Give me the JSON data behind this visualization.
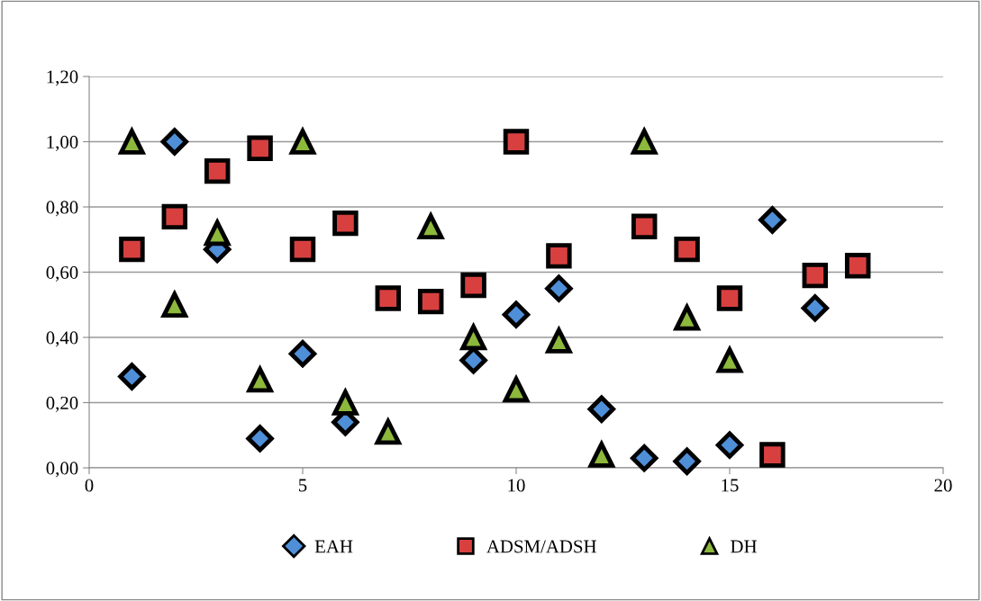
{
  "chart_data": {
    "type": "scatter",
    "xlim": [
      0,
      20
    ],
    "xticks": [
      0,
      5,
      10,
      15,
      20
    ],
    "ylim": [
      0,
      1.2
    ],
    "yticks": [
      {
        "value": 0,
        "label": "0,00"
      },
      {
        "value": 0.2,
        "label": "0,20"
      },
      {
        "value": 0.4,
        "label": "0,40"
      },
      {
        "value": 0.6,
        "label": "0,60"
      },
      {
        "value": 0.8,
        "label": "0,80"
      },
      {
        "value": 1.0,
        "label": "1,00"
      },
      {
        "value": 1.2,
        "label": "1,20"
      }
    ],
    "grid": "y",
    "legend": "bottom",
    "series": [
      {
        "name": "EAH",
        "color": "#4f8fd8",
        "marker": "diamond",
        "x": [
          1,
          2,
          3,
          4,
          5,
          6,
          9,
          10,
          11,
          12,
          13,
          14,
          15,
          16,
          17
        ],
        "values": [
          0.28,
          1.0,
          0.67,
          0.09,
          0.35,
          0.14,
          0.33,
          0.47,
          0.55,
          0.18,
          0.03,
          0.02,
          0.07,
          0.76,
          0.49
        ]
      },
      {
        "name": "ADSM/ADSH",
        "color": "#d84040",
        "marker": "square",
        "x": [
          1,
          2,
          3,
          4,
          5,
          6,
          7,
          8,
          9,
          10,
          11,
          13,
          14,
          15,
          16,
          17,
          18
        ],
        "values": [
          0.67,
          0.77,
          0.91,
          0.98,
          0.67,
          0.75,
          0.52,
          0.51,
          0.56,
          1.0,
          0.65,
          0.74,
          0.67,
          0.52,
          0.04,
          0.59,
          0.62
        ]
      },
      {
        "name": "DH",
        "color": "#8db83c",
        "marker": "triangle",
        "x": [
          1,
          2,
          3,
          4,
          5,
          6,
          7,
          8,
          9,
          10,
          11,
          12,
          13,
          14,
          15
        ],
        "values": [
          1.0,
          0.5,
          0.72,
          0.27,
          1.0,
          0.2,
          0.11,
          0.74,
          0.4,
          0.24,
          0.39,
          0.04,
          1.0,
          0.46,
          0.33
        ]
      }
    ]
  }
}
